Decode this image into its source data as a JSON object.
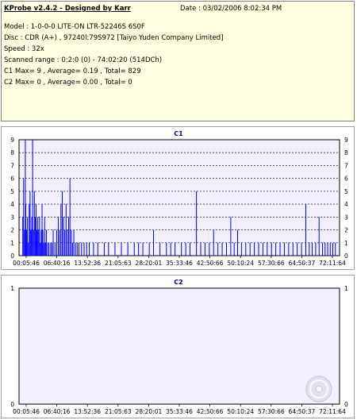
{
  "info": {
    "title": "KProbe v2.4.2 - Designed by Karr",
    "date": "Date : 03/02/2006 8:02:34 PM",
    "model": "Model : 1-0-0-0 LITE-ON LTR-52246S      6S0F",
    "disc": "Disc : CDR (A+) , 97240l:79S972 [Taiyo Yuden Company Limited]",
    "speed": "Speed : 32x",
    "range": "Scanned range : 0:2:0 (0) - 74:02:20 (514DCh)",
    "c1": "C1 Max= 9 , Average= 0.19 , Total= 829",
    "c2": "C2 Max= 0 , Average= 0.00 , Total= 0"
  },
  "colors": {
    "bar": "#0000ff",
    "plot_bg": "#f0f0ff",
    "grid": "#000000",
    "title": "#000080"
  },
  "chart_data": [
    {
      "type": "bar",
      "title": "C1",
      "ylim": [
        0,
        9
      ],
      "yticks": [
        "0",
        "1",
        "2",
        "3",
        "4",
        "5",
        "6",
        "7",
        "8",
        "9"
      ],
      "xticks": [
        "00:05:46",
        "06:40:16",
        "13:52:36",
        "21:05:63",
        "28:20:01",
        "35:33:46",
        "42:50:66",
        "50:10:24",
        "57:30:66",
        "64:50:37",
        "72:11:64"
      ],
      "xlim_minutes": [
        0,
        74
      ],
      "spikes": [
        {
          "t": 0.5,
          "v": 3
        },
        {
          "t": 0.7,
          "v": 6
        },
        {
          "t": 0.9,
          "v": 2
        },
        {
          "t": 1.1,
          "v": 9
        },
        {
          "t": 1.2,
          "v": 4
        },
        {
          "t": 1.4,
          "v": 2
        },
        {
          "t": 1.6,
          "v": 3
        },
        {
          "t": 1.8,
          "v": 1
        },
        {
          "t": 2.0,
          "v": 4
        },
        {
          "t": 2.2,
          "v": 5
        },
        {
          "t": 2.4,
          "v": 2
        },
        {
          "t": 2.6,
          "v": 3
        },
        {
          "t": 2.8,
          "v": 9
        },
        {
          "t": 3.0,
          "v": 2
        },
        {
          "t": 3.2,
          "v": 5
        },
        {
          "t": 3.4,
          "v": 3
        },
        {
          "t": 3.6,
          "v": 4
        },
        {
          "t": 3.8,
          "v": 2
        },
        {
          "t": 4.0,
          "v": 3
        },
        {
          "t": 4.2,
          "v": 2
        },
        {
          "t": 4.4,
          "v": 3
        },
        {
          "t": 4.6,
          "v": 1
        },
        {
          "t": 4.8,
          "v": 2
        },
        {
          "t": 5.0,
          "v": 4
        },
        {
          "t": 5.2,
          "v": 2
        },
        {
          "t": 5.4,
          "v": 1
        },
        {
          "t": 5.6,
          "v": 3
        },
        {
          "t": 5.8,
          "v": 1
        },
        {
          "t": 6.0,
          "v": 2
        },
        {
          "t": 6.3,
          "v": 1
        },
        {
          "t": 6.6,
          "v": 1
        },
        {
          "t": 7.0,
          "v": 1
        },
        {
          "t": 7.3,
          "v": 1
        },
        {
          "t": 7.6,
          "v": 2
        },
        {
          "t": 8.0,
          "v": 1
        },
        {
          "t": 8.4,
          "v": 2
        },
        {
          "t": 8.8,
          "v": 3
        },
        {
          "t": 9.1,
          "v": 2
        },
        {
          "t": 9.4,
          "v": 4
        },
        {
          "t": 9.7,
          "v": 5
        },
        {
          "t": 10.0,
          "v": 3
        },
        {
          "t": 10.3,
          "v": 2
        },
        {
          "t": 10.6,
          "v": 4
        },
        {
          "t": 10.9,
          "v": 2
        },
        {
          "t": 11.2,
          "v": 3
        },
        {
          "t": 11.5,
          "v": 6
        },
        {
          "t": 11.8,
          "v": 2
        },
        {
          "t": 12.1,
          "v": 1
        },
        {
          "t": 12.4,
          "v": 2
        },
        {
          "t": 12.8,
          "v": 1
        },
        {
          "t": 13.2,
          "v": 1
        },
        {
          "t": 13.6,
          "v": 1
        },
        {
          "t": 14.2,
          "v": 1
        },
        {
          "t": 14.8,
          "v": 1
        },
        {
          "t": 15.4,
          "v": 1
        },
        {
          "t": 16.0,
          "v": 1
        },
        {
          "t": 17.0,
          "v": 1
        },
        {
          "t": 18.0,
          "v": 1
        },
        {
          "t": 19.5,
          "v": 1
        },
        {
          "t": 20.5,
          "v": 1
        },
        {
          "t": 22.0,
          "v": 1
        },
        {
          "t": 23.5,
          "v": 1
        },
        {
          "t": 25.0,
          "v": 1
        },
        {
          "t": 26.5,
          "v": 1
        },
        {
          "t": 27.5,
          "v": 1
        },
        {
          "t": 28.5,
          "v": 1
        },
        {
          "t": 30.0,
          "v": 1
        },
        {
          "t": 31.0,
          "v": 2
        },
        {
          "t": 32.5,
          "v": 1
        },
        {
          "t": 34.0,
          "v": 1
        },
        {
          "t": 35.0,
          "v": 1
        },
        {
          "t": 36.0,
          "v": 1
        },
        {
          "t": 37.5,
          "v": 1
        },
        {
          "t": 38.5,
          "v": 1
        },
        {
          "t": 39.5,
          "v": 1
        },
        {
          "t": 41.0,
          "v": 5
        },
        {
          "t": 42.0,
          "v": 1
        },
        {
          "t": 43.0,
          "v": 1
        },
        {
          "t": 44.0,
          "v": 1
        },
        {
          "t": 45.0,
          "v": 2
        },
        {
          "t": 46.0,
          "v": 1
        },
        {
          "t": 47.0,
          "v": 1
        },
        {
          "t": 48.0,
          "v": 1
        },
        {
          "t": 49.0,
          "v": 3
        },
        {
          "t": 49.8,
          "v": 1
        },
        {
          "t": 50.6,
          "v": 2
        },
        {
          "t": 51.5,
          "v": 1
        },
        {
          "t": 52.5,
          "v": 1
        },
        {
          "t": 53.5,
          "v": 1
        },
        {
          "t": 54.5,
          "v": 1
        },
        {
          "t": 55.5,
          "v": 1
        },
        {
          "t": 56.5,
          "v": 1
        },
        {
          "t": 57.5,
          "v": 1
        },
        {
          "t": 58.5,
          "v": 1
        },
        {
          "t": 59.5,
          "v": 1
        },
        {
          "t": 60.5,
          "v": 1
        },
        {
          "t": 61.5,
          "v": 1
        },
        {
          "t": 62.5,
          "v": 1
        },
        {
          "t": 63.5,
          "v": 1
        },
        {
          "t": 64.5,
          "v": 1
        },
        {
          "t": 65.5,
          "v": 1
        },
        {
          "t": 66.5,
          "v": 4
        },
        {
          "t": 67.3,
          "v": 1
        },
        {
          "t": 68.0,
          "v": 1
        },
        {
          "t": 68.8,
          "v": 1
        },
        {
          "t": 69.6,
          "v": 3
        },
        {
          "t": 70.4,
          "v": 1
        },
        {
          "t": 71.0,
          "v": 1
        },
        {
          "t": 71.6,
          "v": 1
        },
        {
          "t": 72.2,
          "v": 1
        },
        {
          "t": 72.8,
          "v": 1
        },
        {
          "t": 73.4,
          "v": 1
        }
      ]
    },
    {
      "type": "bar",
      "title": "C2",
      "ylim": [
        0,
        1
      ],
      "yticks": [
        "0",
        "1"
      ],
      "xticks": [
        "00:05:46",
        "06:40:16",
        "13:52:36",
        "21:05:63",
        "28:20:01",
        "35:33:46",
        "42:50:66",
        "50:10:24",
        "57:30:66",
        "64:50:37",
        "72:11:64"
      ],
      "spikes": []
    }
  ]
}
